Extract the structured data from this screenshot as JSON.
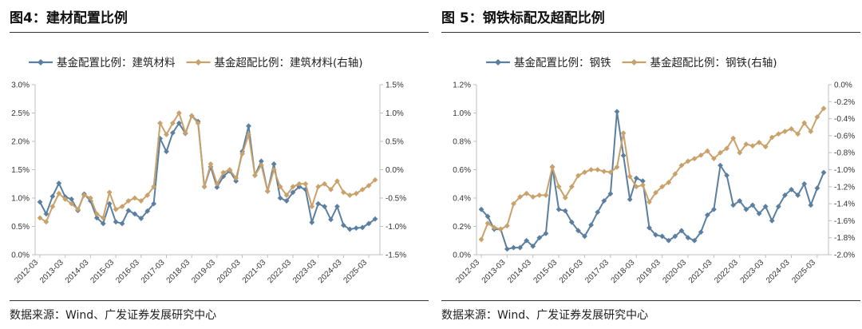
{
  "colors": {
    "blue": "#5b7fa0",
    "tan": "#c9a26b",
    "axis": "#bfbfbf"
  },
  "source_text": "数据来源：Wind、广发证券发展研究中心",
  "x_tick_labels": [
    "2012-03",
    "2013-03",
    "2014-03",
    "2015-03",
    "2016-03",
    "2017-03",
    "2018-03",
    "2019-03",
    "2020-03",
    "2021-03",
    "2022-03",
    "2023-03",
    "2024-03",
    "2025-03"
  ],
  "left_chart": {
    "title": "图4：建材配置比例",
    "chart_data": {
      "type": "line",
      "x": [
        "2012Q1",
        "2012Q2",
        "2012Q3",
        "2012Q4",
        "2013Q1",
        "2013Q2",
        "2013Q3",
        "2013Q4",
        "2014Q1",
        "2014Q2",
        "2014Q3",
        "2014Q4",
        "2015Q1",
        "2015Q2",
        "2015Q3",
        "2015Q4",
        "2016Q1",
        "2016Q2",
        "2016Q3",
        "2016Q4",
        "2017Q1",
        "2017Q2",
        "2017Q3",
        "2017Q4",
        "2018Q1",
        "2018Q2",
        "2018Q3",
        "2018Q4",
        "2019Q1",
        "2019Q2",
        "2019Q3",
        "2019Q4",
        "2020Q1",
        "2020Q2",
        "2020Q3",
        "2020Q4",
        "2021Q1",
        "2021Q2",
        "2021Q3",
        "2021Q4",
        "2022Q1",
        "2022Q2",
        "2022Q3",
        "2022Q4",
        "2023Q1",
        "2023Q2",
        "2023Q3",
        "2023Q4",
        "2024Q1",
        "2024Q2",
        "2024Q3",
        "2024Q4",
        "2025Q1",
        "2025Q2"
      ],
      "series": [
        {
          "name": "基金配置比例：建筑材料",
          "axis": "left",
          "color": "#5b7fa0",
          "values": [
            0.93,
            0.72,
            1.03,
            1.26,
            1.02,
            0.98,
            0.78,
            1.07,
            0.95,
            0.65,
            0.55,
            0.9,
            0.58,
            0.55,
            0.78,
            0.72,
            0.64,
            0.77,
            0.9,
            2.05,
            1.82,
            2.15,
            2.32,
            2.14,
            2.45,
            2.35,
            1.2,
            1.55,
            1.19,
            1.38,
            1.48,
            1.3,
            1.82,
            2.27,
            1.4,
            1.65,
            1.12,
            1.6,
            1.0,
            0.95,
            1.1,
            1.2,
            1.15,
            0.57,
            0.9,
            0.85,
            0.62,
            0.85,
            0.52,
            0.45,
            0.47,
            0.48,
            0.55,
            0.63
          ]
        },
        {
          "name": "基金超配比例：建筑材料(右轴)",
          "axis": "right",
          "color": "#c9a26b",
          "values": [
            -0.85,
            -0.92,
            -0.65,
            -0.42,
            -0.52,
            -0.6,
            -0.7,
            -0.45,
            -0.5,
            -0.78,
            -0.85,
            -0.4,
            -0.7,
            -0.65,
            -0.55,
            -0.5,
            -0.55,
            -0.45,
            -0.3,
            0.82,
            0.62,
            0.82,
            1.0,
            0.65,
            0.95,
            0.82,
            -0.3,
            0.1,
            -0.25,
            -0.05,
            0.0,
            -0.15,
            0.28,
            0.62,
            -0.1,
            0.08,
            -0.38,
            0.0,
            -0.3,
            -0.45,
            -0.3,
            -0.25,
            -0.25,
            -0.65,
            -0.3,
            -0.25,
            -0.35,
            -0.2,
            -0.4,
            -0.45,
            -0.42,
            -0.35,
            -0.28,
            -0.18
          ]
        }
      ],
      "ylim_left": [
        0.0,
        3.0
      ],
      "ylim_right": [
        -1.5,
        1.5
      ],
      "yticks_left": [
        "0.0%",
        "0.5%",
        "1.0%",
        "1.5%",
        "2.0%",
        "2.5%",
        "3.0%"
      ],
      "yticks_right": [
        "-1.5%",
        "-1.0%",
        "-0.5%",
        "0.0%",
        "0.5%",
        "1.0%",
        "1.5%"
      ],
      "legend": "top",
      "grid": false
    }
  },
  "right_chart": {
    "title": "图 5：钢铁标配及超配比例",
    "chart_data": {
      "type": "line",
      "x": [
        "2012Q1",
        "2012Q2",
        "2012Q3",
        "2012Q4",
        "2013Q1",
        "2013Q2",
        "2013Q3",
        "2013Q4",
        "2014Q1",
        "2014Q2",
        "2014Q3",
        "2014Q4",
        "2015Q1",
        "2015Q2",
        "2015Q3",
        "2015Q4",
        "2016Q1",
        "2016Q2",
        "2016Q3",
        "2016Q4",
        "2017Q1",
        "2017Q2",
        "2017Q3",
        "2017Q4",
        "2018Q1",
        "2018Q2",
        "2018Q3",
        "2018Q4",
        "2019Q1",
        "2019Q2",
        "2019Q3",
        "2019Q4",
        "2020Q1",
        "2020Q2",
        "2020Q3",
        "2020Q4",
        "2021Q1",
        "2021Q2",
        "2021Q3",
        "2021Q4",
        "2022Q1",
        "2022Q2",
        "2022Q3",
        "2022Q4",
        "2023Q1",
        "2023Q2",
        "2023Q3",
        "2023Q4",
        "2024Q1",
        "2024Q2",
        "2024Q3",
        "2024Q4",
        "2025Q1",
        "2025Q2"
      ],
      "series": [
        {
          "name": "基金配置比例：钢铁",
          "axis": "left",
          "color": "#5b7fa0",
          "values": [
            0.32,
            0.27,
            0.18,
            0.18,
            0.04,
            0.05,
            0.05,
            0.1,
            0.06,
            0.12,
            0.15,
            0.62,
            0.32,
            0.31,
            0.23,
            0.17,
            0.13,
            0.21,
            0.3,
            0.38,
            0.43,
            1.01,
            0.7,
            0.39,
            0.54,
            0.52,
            0.19,
            0.14,
            0.13,
            0.1,
            0.13,
            0.17,
            0.12,
            0.1,
            0.16,
            0.28,
            0.32,
            0.63,
            0.56,
            0.35,
            0.38,
            0.32,
            0.35,
            0.29,
            0.34,
            0.24,
            0.34,
            0.42,
            0.46,
            0.42,
            0.5,
            0.35,
            0.47,
            0.58
          ]
        },
        {
          "name": "基金超配比例：钢铁(右轴)",
          "axis": "right",
          "color": "#c9a26b",
          "values": [
            -1.82,
            -1.63,
            -1.68,
            -1.7,
            -1.66,
            -1.4,
            -1.32,
            -1.28,
            -1.32,
            -1.3,
            -1.3,
            -0.97,
            -1.2,
            -1.33,
            -1.2,
            -1.07,
            -1.03,
            -1.0,
            -1.0,
            -1.02,
            -1.03,
            -0.97,
            -0.57,
            -1.08,
            -1.2,
            -1.18,
            -1.38,
            -1.27,
            -1.2,
            -1.15,
            -1.05,
            -0.95,
            -0.9,
            -0.87,
            -0.83,
            -0.78,
            -0.87,
            -0.8,
            -0.75,
            -0.63,
            -0.8,
            -0.7,
            -0.72,
            -0.68,
            -0.73,
            -0.62,
            -0.58,
            -0.55,
            -0.52,
            -0.58,
            -0.45,
            -0.55,
            -0.38,
            -0.28
          ]
        }
      ],
      "ylim_left": [
        0.0,
        1.2
      ],
      "ylim_right": [
        -2.0,
        0.0
      ],
      "yticks_left": [
        "0.0%",
        "0.2%",
        "0.4%",
        "0.6%",
        "0.8%",
        "1.0%",
        "1.2%"
      ],
      "yticks_right": [
        "-2.0%",
        "-1.8%",
        "-1.6%",
        "-1.4%",
        "-1.2%",
        "-1.0%",
        "-0.8%",
        "-0.6%",
        "-0.4%",
        "-0.2%",
        "0.0%"
      ],
      "legend": "top",
      "grid": false
    }
  }
}
